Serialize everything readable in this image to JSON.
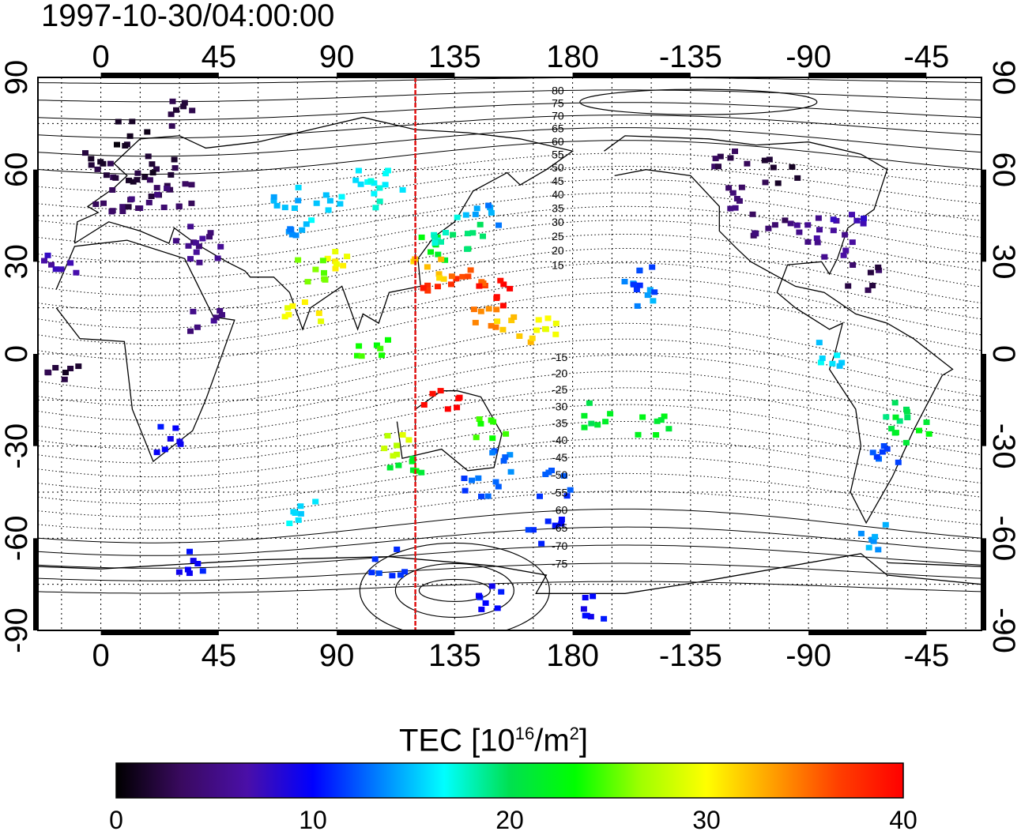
{
  "title": "1997-10-30/04:00:00",
  "axes": {
    "x_top_ticks": [
      "0",
      "45",
      "90",
      "135",
      "180",
      "-135",
      "-90",
      "-45"
    ],
    "x_bottom_ticks": [
      "0",
      "45",
      "90",
      "135",
      "180",
      "-135",
      "-90",
      "-45"
    ],
    "y_left_ticks": [
      "90",
      "60",
      "30",
      "0",
      "-30",
      "-60",
      "-90"
    ],
    "y_right_ticks": [
      "90",
      "60",
      "30",
      "0",
      "-30",
      "-60",
      "-90"
    ]
  },
  "map": {
    "lon_range": [
      -24,
      336
    ],
    "lat_range": [
      -90,
      90
    ],
    "grid_step_deg": 15,
    "meridian_line_lon": 120,
    "meridian_line_color": "#e01010",
    "contour_labels": [
      "80",
      "75",
      "70",
      "65",
      "60",
      "55",
      "50",
      "45",
      "40",
      "35",
      "30",
      "25",
      "20",
      "15",
      "-15",
      "-20",
      "-25",
      "-30",
      "-35",
      "-40",
      "-45",
      "-50",
      "-55",
      "-60",
      "-65",
      "-70",
      "-75"
    ]
  },
  "colorbar": {
    "title_main": "TEC  [10",
    "title_exp1": "16",
    "title_mid": "/m",
    "title_exp2": "2",
    "title_end": "]",
    "ticks": [
      "0",
      "10",
      "20",
      "30",
      "40"
    ],
    "range": [
      0,
      40
    ],
    "colors": [
      "#000000",
      "#3a0a60",
      "#4a0fa8",
      "#0000ff",
      "#0080ff",
      "#00ffff",
      "#00e050",
      "#00ff00",
      "#a0ff00",
      "#ffff00",
      "#ffa000",
      "#ff4000",
      "#ff0000"
    ]
  },
  "observations": [
    {
      "lon": 0,
      "lat": 62,
      "tec": 2
    },
    {
      "lon": 10,
      "lat": 58,
      "tec": 2
    },
    {
      "lon": 20,
      "lat": 55,
      "tec": 3
    },
    {
      "lon": 15,
      "lat": 48,
      "tec": 4
    },
    {
      "lon": 5,
      "lat": 50,
      "tec": 3
    },
    {
      "lon": 30,
      "lat": 52,
      "tec": 4
    },
    {
      "lon": 25,
      "lat": 62,
      "tec": 2
    },
    {
      "lon": 12,
      "lat": 72,
      "tec": 1
    },
    {
      "lon": 28,
      "lat": 78,
      "tec": 2
    },
    {
      "lon": 35,
      "lat": 38,
      "tec": 5
    },
    {
      "lon": 40,
      "lat": 34,
      "tec": 6
    },
    {
      "lon": -15,
      "lat": 30,
      "tec": 7
    },
    {
      "lon": 40,
      "lat": 10,
      "tec": 5
    },
    {
      "lon": -15,
      "lat": -5,
      "tec": 2
    },
    {
      "lon": 25,
      "lat": -28,
      "tec": 10
    },
    {
      "lon": 73,
      "lat": 50,
      "tec": 15
    },
    {
      "lon": 85,
      "lat": 48,
      "tec": 16
    },
    {
      "lon": 78,
      "lat": 42,
      "tec": 14
    },
    {
      "lon": 90,
      "lat": 30,
      "tec": 30
    },
    {
      "lon": 82,
      "lat": 28,
      "tec": 26
    },
    {
      "lon": 103,
      "lat": 57,
      "tec": 16
    },
    {
      "lon": 110,
      "lat": 52,
      "tec": 17
    },
    {
      "lon": 77,
      "lat": 15,
      "tec": 30
    },
    {
      "lon": 103,
      "lat": 1,
      "tec": 24
    },
    {
      "lon": 125,
      "lat": 35,
      "tec": 22
    },
    {
      "lon": 132,
      "lat": 40,
      "tec": 18
    },
    {
      "lon": 140,
      "lat": 38,
      "tec": 20
    },
    {
      "lon": 145,
      "lat": 44,
      "tec": 14
    },
    {
      "lon": 125,
      "lat": 28,
      "tec": 32
    },
    {
      "lon": 130,
      "lat": 24,
      "tec": 38
    },
    {
      "lon": 140,
      "lat": 26,
      "tec": 36
    },
    {
      "lon": 150,
      "lat": 20,
      "tec": 40
    },
    {
      "lon": 148,
      "lat": 12,
      "tec": 34
    },
    {
      "lon": 158,
      "lat": 8,
      "tec": 32
    },
    {
      "lon": 170,
      "lat": 10,
      "tec": 30
    },
    {
      "lon": 130,
      "lat": -14,
      "tec": 40
    },
    {
      "lon": 115,
      "lat": -30,
      "tec": 28
    },
    {
      "lon": 117,
      "lat": -38,
      "tec": 22
    },
    {
      "lon": 150,
      "lat": -25,
      "tec": 24
    },
    {
      "lon": 150,
      "lat": -36,
      "tec": 13
    },
    {
      "lon": 145,
      "lat": -42,
      "tec": 12
    },
    {
      "lon": 173,
      "lat": -42,
      "tec": 12
    },
    {
      "lon": 170,
      "lat": -58,
      "tec": 11
    },
    {
      "lon": 190,
      "lat": -20,
      "tec": 21
    },
    {
      "lon": 210,
      "lat": -24,
      "tec": 22
    },
    {
      "lon": 205,
      "lat": 20,
      "tec": 14
    },
    {
      "lon": 210,
      "lat": 24,
      "tec": 12
    },
    {
      "lon": 240,
      "lat": 50,
      "tec": 4
    },
    {
      "lon": 255,
      "lat": 42,
      "tec": 4
    },
    {
      "lon": 270,
      "lat": 40,
      "tec": 5
    },
    {
      "lon": 280,
      "lat": 35,
      "tec": 6
    },
    {
      "lon": 285,
      "lat": 42,
      "tec": 7
    },
    {
      "lon": 260,
      "lat": 60,
      "tec": 2
    },
    {
      "lon": 240,
      "lat": 65,
      "tec": 3
    },
    {
      "lon": 290,
      "lat": 25,
      "tec": 3
    },
    {
      "lon": 278,
      "lat": 0,
      "tec": 16
    },
    {
      "lon": 305,
      "lat": -20,
      "tec": 20
    },
    {
      "lon": 310,
      "lat": -25,
      "tec": 22
    },
    {
      "lon": 300,
      "lat": -32,
      "tec": 12
    },
    {
      "lon": 295,
      "lat": -60,
      "tec": 14
    },
    {
      "lon": 35,
      "lat": -68,
      "tec": 10
    },
    {
      "lon": 75,
      "lat": -52,
      "tec": 16
    },
    {
      "lon": 150,
      "lat": -80,
      "tec": 10
    },
    {
      "lon": 110,
      "lat": -68,
      "tec": 11
    },
    {
      "lon": 185,
      "lat": -82,
      "tec": 10
    }
  ]
}
